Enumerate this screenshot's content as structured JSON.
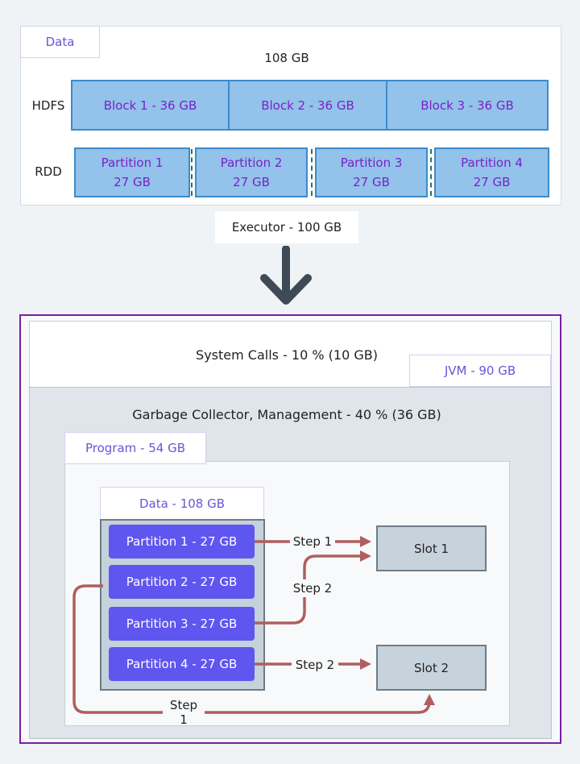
{
  "data_panel": {
    "tab": "Data",
    "total": "108 GB",
    "hdfs_label": "HDFS",
    "rdd_label": "RDD",
    "blocks": [
      "Block 1 - 36 GB",
      "Block 2 - 36 GB",
      "Block 3 - 36 GB"
    ],
    "partitions": [
      {
        "name": "Partition 1",
        "size": "27 GB"
      },
      {
        "name": "Partition 2",
        "size": "27 GB"
      },
      {
        "name": "Partition 3",
        "size": "27 GB"
      },
      {
        "name": "Partition 4",
        "size": "27 GB"
      }
    ]
  },
  "executor": {
    "label": "Executor - 100 GB",
    "arrow_icon": "arrow-down-icon"
  },
  "jvm": {
    "system_calls": "System Calls - 10 % (10 GB)",
    "tab": "JVM - 90 GB",
    "gc": "Garbage Collector, Management - 40 % (36 GB)"
  },
  "program": {
    "tab": "Program - 54 GB",
    "data_header": "Data - 108 GB",
    "partitions": [
      "Partition 1 - 27 GB",
      "Partition 2 - 27 GB",
      "Partition 3 - 27 GB",
      "Partition 4 - 27 GB"
    ],
    "slots": [
      "Slot 1",
      "Slot 2"
    ],
    "steps": [
      "Step 1",
      "Step 2",
      "Step 2",
      "Step 1"
    ]
  },
  "colors": {
    "arrow": "#b05e5e",
    "partition": "#5f55ef",
    "block": "#93c2ea",
    "border": "#7a1fa2"
  }
}
